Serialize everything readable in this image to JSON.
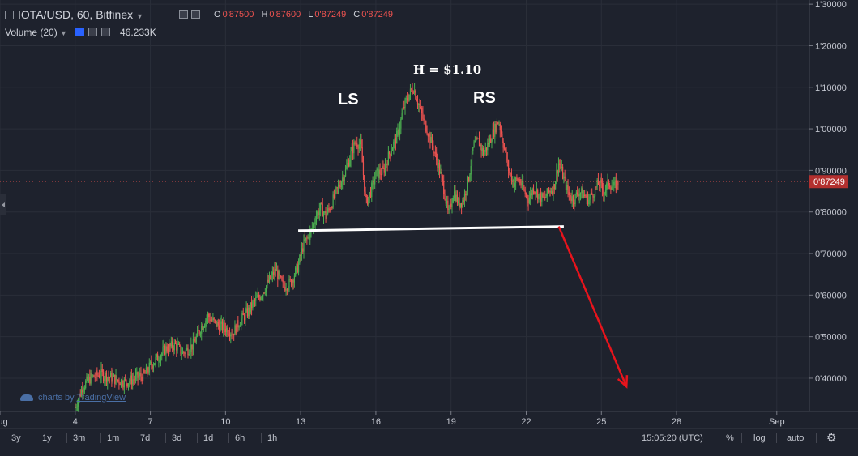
{
  "header": {
    "symbol": "IOTA/USD, 60, Bitfinex",
    "o_label": "O",
    "o_value": "0'87500",
    "h_label": "H",
    "h_value": "0'87600",
    "l_label": "L",
    "l_value": "0'87249",
    "c_label": "C",
    "c_value": "0'87249",
    "volume_label": "Volume (20)",
    "volume_value": "46.233K"
  },
  "annotations": {
    "head": "H = $1.10",
    "left_shoulder": "LS",
    "right_shoulder": "RS",
    "neckline_price": [
      0.755,
      0.765
    ],
    "projection_target": 0.38
  },
  "watermark": {
    "prefix": "charts by ",
    "brand": "TradingView"
  },
  "price_tag": "0'87249",
  "footer": {
    "ranges": [
      "3y",
      "1y",
      "3m",
      "1m",
      "7d",
      "3d",
      "1d",
      "6h",
      "1h"
    ],
    "clock": "15:05:20 (UTC)",
    "percent": "%",
    "log": "log",
    "auto": "auto"
  },
  "colors": {
    "up": "#4caf50",
    "down": "#ef5350",
    "neckline": "#ffffff",
    "arrow": "#e8141c"
  },
  "chart_data": {
    "type": "line",
    "title": "IOTA/USD, 60, Bitfinex",
    "x_ticks": [
      "Aug",
      "4",
      "7",
      "10",
      "13",
      "16",
      "19",
      "22",
      "25",
      "28",
      "Sep"
    ],
    "x_tick_days": [
      1,
      4,
      7,
      10,
      13,
      16,
      19,
      22,
      25,
      28,
      32
    ],
    "y_ticks": [
      "1'30000",
      "1'20000",
      "1'10000",
      "1'00000",
      "0'90000",
      "0'80000",
      "0'70000",
      "0'60000",
      "0'50000",
      "0'40000"
    ],
    "y_tick_values": [
      1.3,
      1.2,
      1.1,
      1.0,
      0.9,
      0.8,
      0.7,
      0.6,
      0.5,
      0.4
    ],
    "ylim": [
      0.32,
      1.31
    ],
    "xlim": [
      1,
      33.3
    ],
    "series": [
      {
        "x": [
          4.0,
          4.3,
          4.6,
          5.0,
          5.5,
          6.0,
          6.4,
          6.8,
          7.0,
          7.3,
          7.6,
          8.0,
          8.3,
          8.7,
          9.0,
          9.3,
          9.6,
          10.0,
          10.3,
          10.6,
          10.9,
          11.1,
          11.4,
          11.7,
          12.0,
          12.3,
          12.6,
          12.9,
          13.1,
          13.4,
          13.6,
          13.8,
          14.0,
          14.3,
          14.5,
          14.8,
          15.0,
          15.2,
          15.4,
          15.6,
          15.8,
          16.0,
          16.3,
          16.6,
          16.9,
          17.1,
          17.3,
          17.5,
          17.7,
          17.9,
          18.1,
          18.3,
          18.5,
          18.7,
          18.9,
          19.1,
          19.3,
          19.5,
          19.7,
          19.9,
          20.1,
          20.3,
          20.6,
          20.9,
          21.1,
          21.3,
          21.5,
          21.7,
          21.9,
          22.1,
          22.3,
          22.5,
          22.7,
          22.9,
          23.1,
          23.3,
          23.5,
          23.7,
          23.9,
          24.1,
          24.3,
          24.5,
          24.7,
          24.9,
          25.1,
          25.3,
          25.5,
          25.7
        ],
        "y": [
          0.33,
          0.38,
          0.4,
          0.41,
          0.4,
          0.39,
          0.4,
          0.41,
          0.43,
          0.45,
          0.47,
          0.48,
          0.46,
          0.48,
          0.52,
          0.55,
          0.53,
          0.52,
          0.51,
          0.54,
          0.56,
          0.58,
          0.6,
          0.63,
          0.66,
          0.62,
          0.63,
          0.67,
          0.72,
          0.75,
          0.79,
          0.81,
          0.79,
          0.83,
          0.86,
          0.9,
          0.94,
          0.97,
          0.96,
          0.82,
          0.85,
          0.89,
          0.9,
          0.95,
          0.99,
          1.05,
          1.08,
          1.1,
          1.06,
          1.02,
          0.99,
          0.95,
          0.91,
          0.86,
          0.79,
          0.85,
          0.82,
          0.83,
          0.88,
          0.96,
          0.97,
          0.94,
          0.98,
          1.02,
          0.96,
          0.9,
          0.87,
          0.88,
          0.85,
          0.83,
          0.86,
          0.84,
          0.83,
          0.85,
          0.86,
          0.92,
          0.88,
          0.84,
          0.83,
          0.85,
          0.84,
          0.83,
          0.85,
          0.87,
          0.85,
          0.87,
          0.86,
          0.873
        ]
      }
    ],
    "grid": true
  }
}
